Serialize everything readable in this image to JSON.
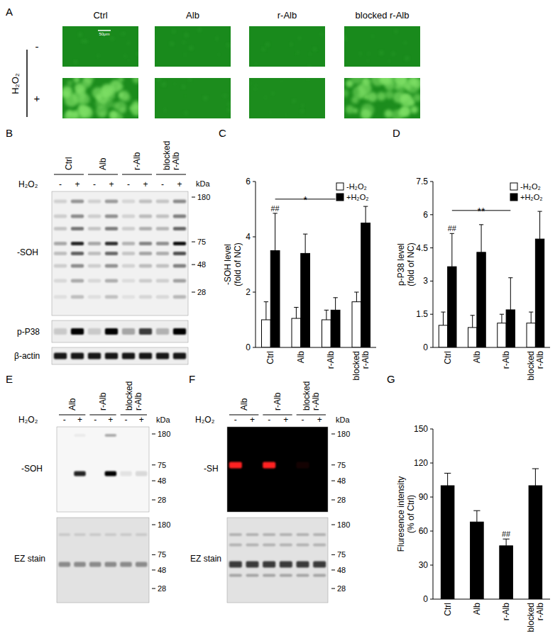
{
  "figure_a": {
    "letter": "A",
    "columns": [
      "Ctrl",
      "Alb",
      "r-Alb",
      "blocked r-Alb"
    ],
    "treatment": "H₂O₂",
    "rows": [
      "-",
      "+"
    ],
    "scale_bar": "50μm"
  },
  "blots": [
    {
      "letter": "B",
      "groups": [
        "Ctrl",
        "Alb",
        "r-Alb",
        "blocked r-Alb"
      ],
      "treatment": "H₂O₂",
      "lane_signs": [
        "-",
        "+"
      ],
      "unit": "kDa",
      "rows": [
        {
          "label": "-SOH",
          "markers": [
            180,
            75,
            48,
            28
          ]
        },
        {
          "label": "p-P38"
        },
        {
          "label": "β-actin"
        }
      ]
    },
    {
      "letter": "E",
      "groups": [
        "Alb",
        "r-Alb",
        "blocked r-Alb"
      ],
      "treatment": "H₂O₂",
      "lane_signs": [
        "-",
        "+"
      ],
      "unit": "kDa",
      "rows": [
        {
          "label": "-SOH",
          "markers": [
            180,
            75,
            48,
            28
          ]
        },
        {
          "label": "EZ stain",
          "markers": [
            180,
            75,
            48,
            28
          ]
        }
      ]
    },
    {
      "letter": "F",
      "groups": [
        "Alb",
        "r-Alb",
        "blocked r-Alb"
      ],
      "treatment": "H₂O₂",
      "lane_signs": [
        "-",
        "+"
      ],
      "unit": "kDa",
      "rows": [
        {
          "label": "-SH",
          "markers": [
            180,
            75,
            48,
            28
          ]
        },
        {
          "label": "EZ stain",
          "markers": [
            180,
            75,
            48,
            28
          ]
        }
      ]
    }
  ],
  "chart_data": [
    {
      "letter": "C",
      "type": "bar",
      "categories": [
        "Ctrl",
        "Alb",
        "r-Alb",
        "blocked r-Alb"
      ],
      "ylabel": [
        "-SOH level",
        "(fold of NC)"
      ],
      "ylim": [
        0,
        6
      ],
      "yticks": [
        0,
        2,
        4,
        6
      ],
      "legend": "upper right",
      "series": [
        {
          "name": "-H₂O₂",
          "color": "#ffffff",
          "values": [
            1.0,
            1.05,
            1.0,
            1.65
          ],
          "errors": [
            0.65,
            0.4,
            0.35,
            0.35
          ]
        },
        {
          "name": "+H₂O₂",
          "color": "#000000",
          "values": [
            3.5,
            3.4,
            1.35,
            4.5
          ],
          "errors": [
            1.35,
            0.7,
            0.45,
            0.6
          ]
        }
      ],
      "annotations": [
        {
          "text": "##",
          "series": 1,
          "index": 0
        },
        {
          "text": "*",
          "series": 1,
          "from": 0,
          "to": 2
        }
      ]
    },
    {
      "letter": "D",
      "type": "bar",
      "categories": [
        "Ctrl",
        "Alb",
        "r-Alb",
        "blocked r-Alb"
      ],
      "ylabel": [
        "p-P38 level",
        "(fold of NC)"
      ],
      "ylim": [
        0,
        7.5
      ],
      "yticks": [
        0,
        1.5,
        3,
        4.5,
        6,
        7.5
      ],
      "legend": "upper right",
      "series": [
        {
          "name": "-H₂O₂",
          "color": "#ffffff",
          "values": [
            1.0,
            0.9,
            1.1,
            1.1
          ],
          "errors": [
            0.6,
            0.55,
            0.4,
            0.5
          ]
        },
        {
          "name": "+H₂O₂",
          "color": "#000000",
          "values": [
            3.65,
            4.3,
            1.7,
            4.9
          ],
          "errors": [
            1.5,
            1.25,
            1.45,
            1.25
          ]
        }
      ],
      "annotations": [
        {
          "text": "##",
          "series": 1,
          "index": 0
        },
        {
          "text": "**",
          "series": 1,
          "from": 0,
          "to": 2
        }
      ]
    },
    {
      "letter": "G",
      "type": "bar",
      "categories": [
        "Ctrl",
        "Alb",
        "r-Alb",
        "blocked r-Alb"
      ],
      "ylabel": [
        "Fluresence intensity",
        "(% of Ctrl)"
      ],
      "ylim": [
        0,
        150
      ],
      "yticks": [
        0,
        30,
        60,
        90,
        120,
        150
      ],
      "series": [
        {
          "color": "#000000",
          "values": [
            100,
            68,
            47,
            100
          ],
          "errors": [
            11,
            10,
            6,
            15
          ]
        }
      ],
      "annotations": [
        {
          "text": "##",
          "series": 0,
          "index": 2
        }
      ]
    }
  ]
}
